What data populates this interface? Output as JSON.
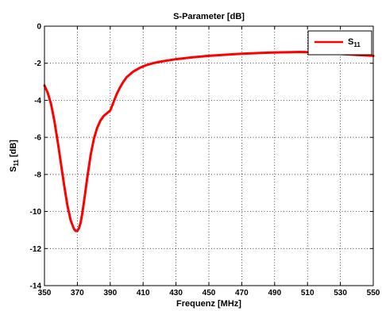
{
  "chart_data": {
    "type": "line",
    "title": "S-Parameter [dB]",
    "xlabel": "Frequenz [MHz]",
    "ylabel_main": "S",
    "ylabel_sub": "11",
    "ylabel_unit": " [dB]",
    "xlim": [
      350,
      550
    ],
    "ylim": [
      -14,
      0
    ],
    "xticks": [
      350,
      370,
      390,
      410,
      430,
      450,
      470,
      490,
      510,
      530,
      550
    ],
    "yticks": [
      0,
      -2,
      -4,
      -6,
      -8,
      -10,
      -12,
      -14
    ],
    "grid": true,
    "legend_position": "top-right",
    "series": [
      {
        "legend_main": "S",
        "legend_sub": "11",
        "color": "#ff0000",
        "x": [
          350,
          352,
          354,
          356,
          358,
          360,
          362,
          364,
          366,
          368,
          369,
          370,
          371,
          372,
          373,
          374,
          376,
          378,
          380,
          382,
          384,
          386,
          388,
          390,
          392,
          394,
          396,
          398,
          400,
          404,
          408,
          412,
          416,
          420,
          430,
          440,
          450,
          460,
          470,
          480,
          490,
          500,
          505,
          510,
          520,
          530,
          540,
          550
        ],
        "y": [
          -3.2,
          -3.6,
          -4.2,
          -5.1,
          -6.2,
          -7.4,
          -8.6,
          -9.7,
          -10.5,
          -10.95,
          -11.05,
          -11.05,
          -10.9,
          -10.6,
          -10.1,
          -9.5,
          -8.2,
          -7.0,
          -6.1,
          -5.5,
          -5.1,
          -4.85,
          -4.7,
          -4.55,
          -4.1,
          -3.65,
          -3.3,
          -3.0,
          -2.75,
          -2.45,
          -2.25,
          -2.1,
          -2.0,
          -1.92,
          -1.78,
          -1.68,
          -1.6,
          -1.54,
          -1.49,
          -1.45,
          -1.42,
          -1.4,
          -1.39,
          -1.4,
          -1.44,
          -1.5,
          -1.55,
          -1.6
        ]
      }
    ]
  }
}
